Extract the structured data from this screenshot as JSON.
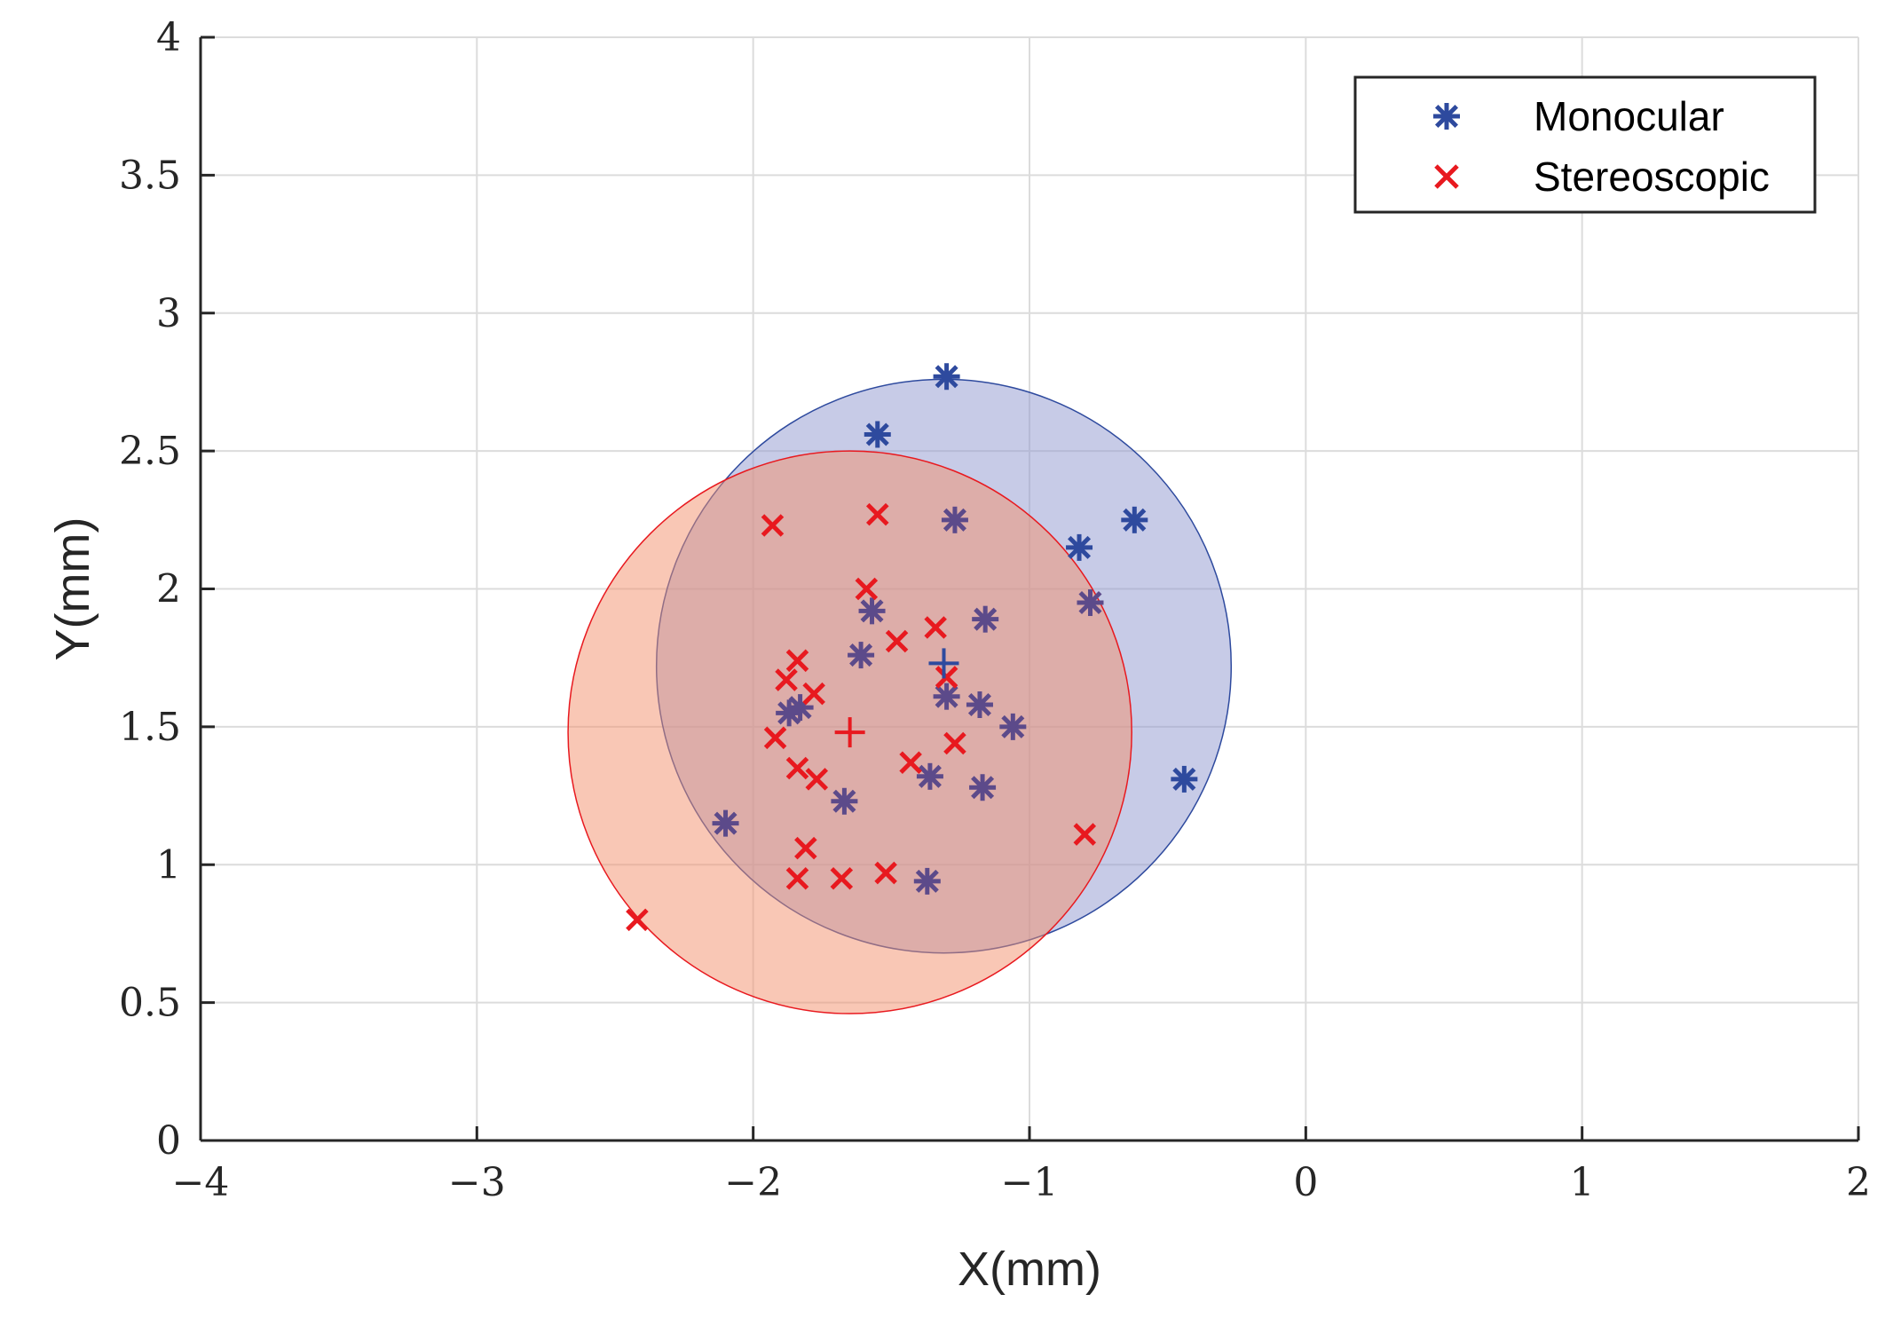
{
  "chart_data": {
    "type": "scatter",
    "title": "",
    "xlabel": "X(mm)",
    "ylabel": "Y(mm)",
    "xlim": [
      -4,
      2
    ],
    "ylim": [
      0,
      4
    ],
    "xticks": [
      -4,
      -3,
      -2,
      -1,
      0,
      1,
      2
    ],
    "yticks": [
      0,
      0.5,
      1,
      1.5,
      2,
      2.5,
      3,
      3.5,
      4
    ],
    "xtick_labels": [
      "−4",
      "−3",
      "−2",
      "−1",
      "0",
      "1",
      "2"
    ],
    "ytick_labels": [
      "0",
      "0.5",
      "1",
      "1.5",
      "2",
      "2.5",
      "3",
      "3.5",
      "4"
    ],
    "grid": true,
    "legend_position": "top-right",
    "series": [
      {
        "name": "Monocular",
        "marker": "asterisk",
        "color": "#2e4a9e",
        "points": [
          [
            -1.3,
            2.77
          ],
          [
            -1.55,
            2.56
          ],
          [
            -1.27,
            2.25
          ],
          [
            -0.82,
            2.15
          ],
          [
            -0.62,
            2.25
          ],
          [
            -0.78,
            1.95
          ],
          [
            -1.57,
            1.92
          ],
          [
            -1.16,
            1.89
          ],
          [
            -1.61,
            1.76
          ],
          [
            -1.3,
            1.61
          ],
          [
            -1.18,
            1.58
          ],
          [
            -1.83,
            1.57
          ],
          [
            -1.87,
            1.55
          ],
          [
            -1.06,
            1.5
          ],
          [
            -0.44,
            1.31
          ],
          [
            -1.36,
            1.32
          ],
          [
            -1.17,
            1.28
          ],
          [
            -1.67,
            1.23
          ],
          [
            -2.1,
            1.15
          ],
          [
            -1.37,
            0.94
          ]
        ],
        "mean": [
          -1.31,
          1.73
        ],
        "circle": {
          "cx": -1.31,
          "cy": 1.72,
          "r": 1.04
        }
      },
      {
        "name": "Stereoscopic",
        "marker": "x",
        "color": "#e8191f",
        "points": [
          [
            -1.93,
            2.23
          ],
          [
            -1.55,
            2.27
          ],
          [
            -1.59,
            2.0
          ],
          [
            -1.48,
            1.81
          ],
          [
            -1.34,
            1.86
          ],
          [
            -1.84,
            1.74
          ],
          [
            -1.88,
            1.67
          ],
          [
            -1.78,
            1.62
          ],
          [
            -1.3,
            1.68
          ],
          [
            -1.92,
            1.46
          ],
          [
            -1.27,
            1.44
          ],
          [
            -1.43,
            1.37
          ],
          [
            -1.84,
            1.35
          ],
          [
            -1.77,
            1.31
          ],
          [
            -0.8,
            1.11
          ],
          [
            -1.81,
            1.06
          ],
          [
            -1.84,
            0.95
          ],
          [
            -1.68,
            0.95
          ],
          [
            -1.52,
            0.97
          ],
          [
            -2.42,
            0.8
          ]
        ],
        "mean": [
          -1.65,
          1.48
        ],
        "circle": {
          "cx": -1.65,
          "cy": 1.48,
          "r": 1.02
        }
      }
    ],
    "overlap_marker_color": "#5c4a8a",
    "circle_fill_colors": {
      "Monocular": "#9098cf",
      "Stereoscopic": "#f48f6c"
    },
    "axis_color": "#262626",
    "grid_color": "#dcdcdc"
  }
}
